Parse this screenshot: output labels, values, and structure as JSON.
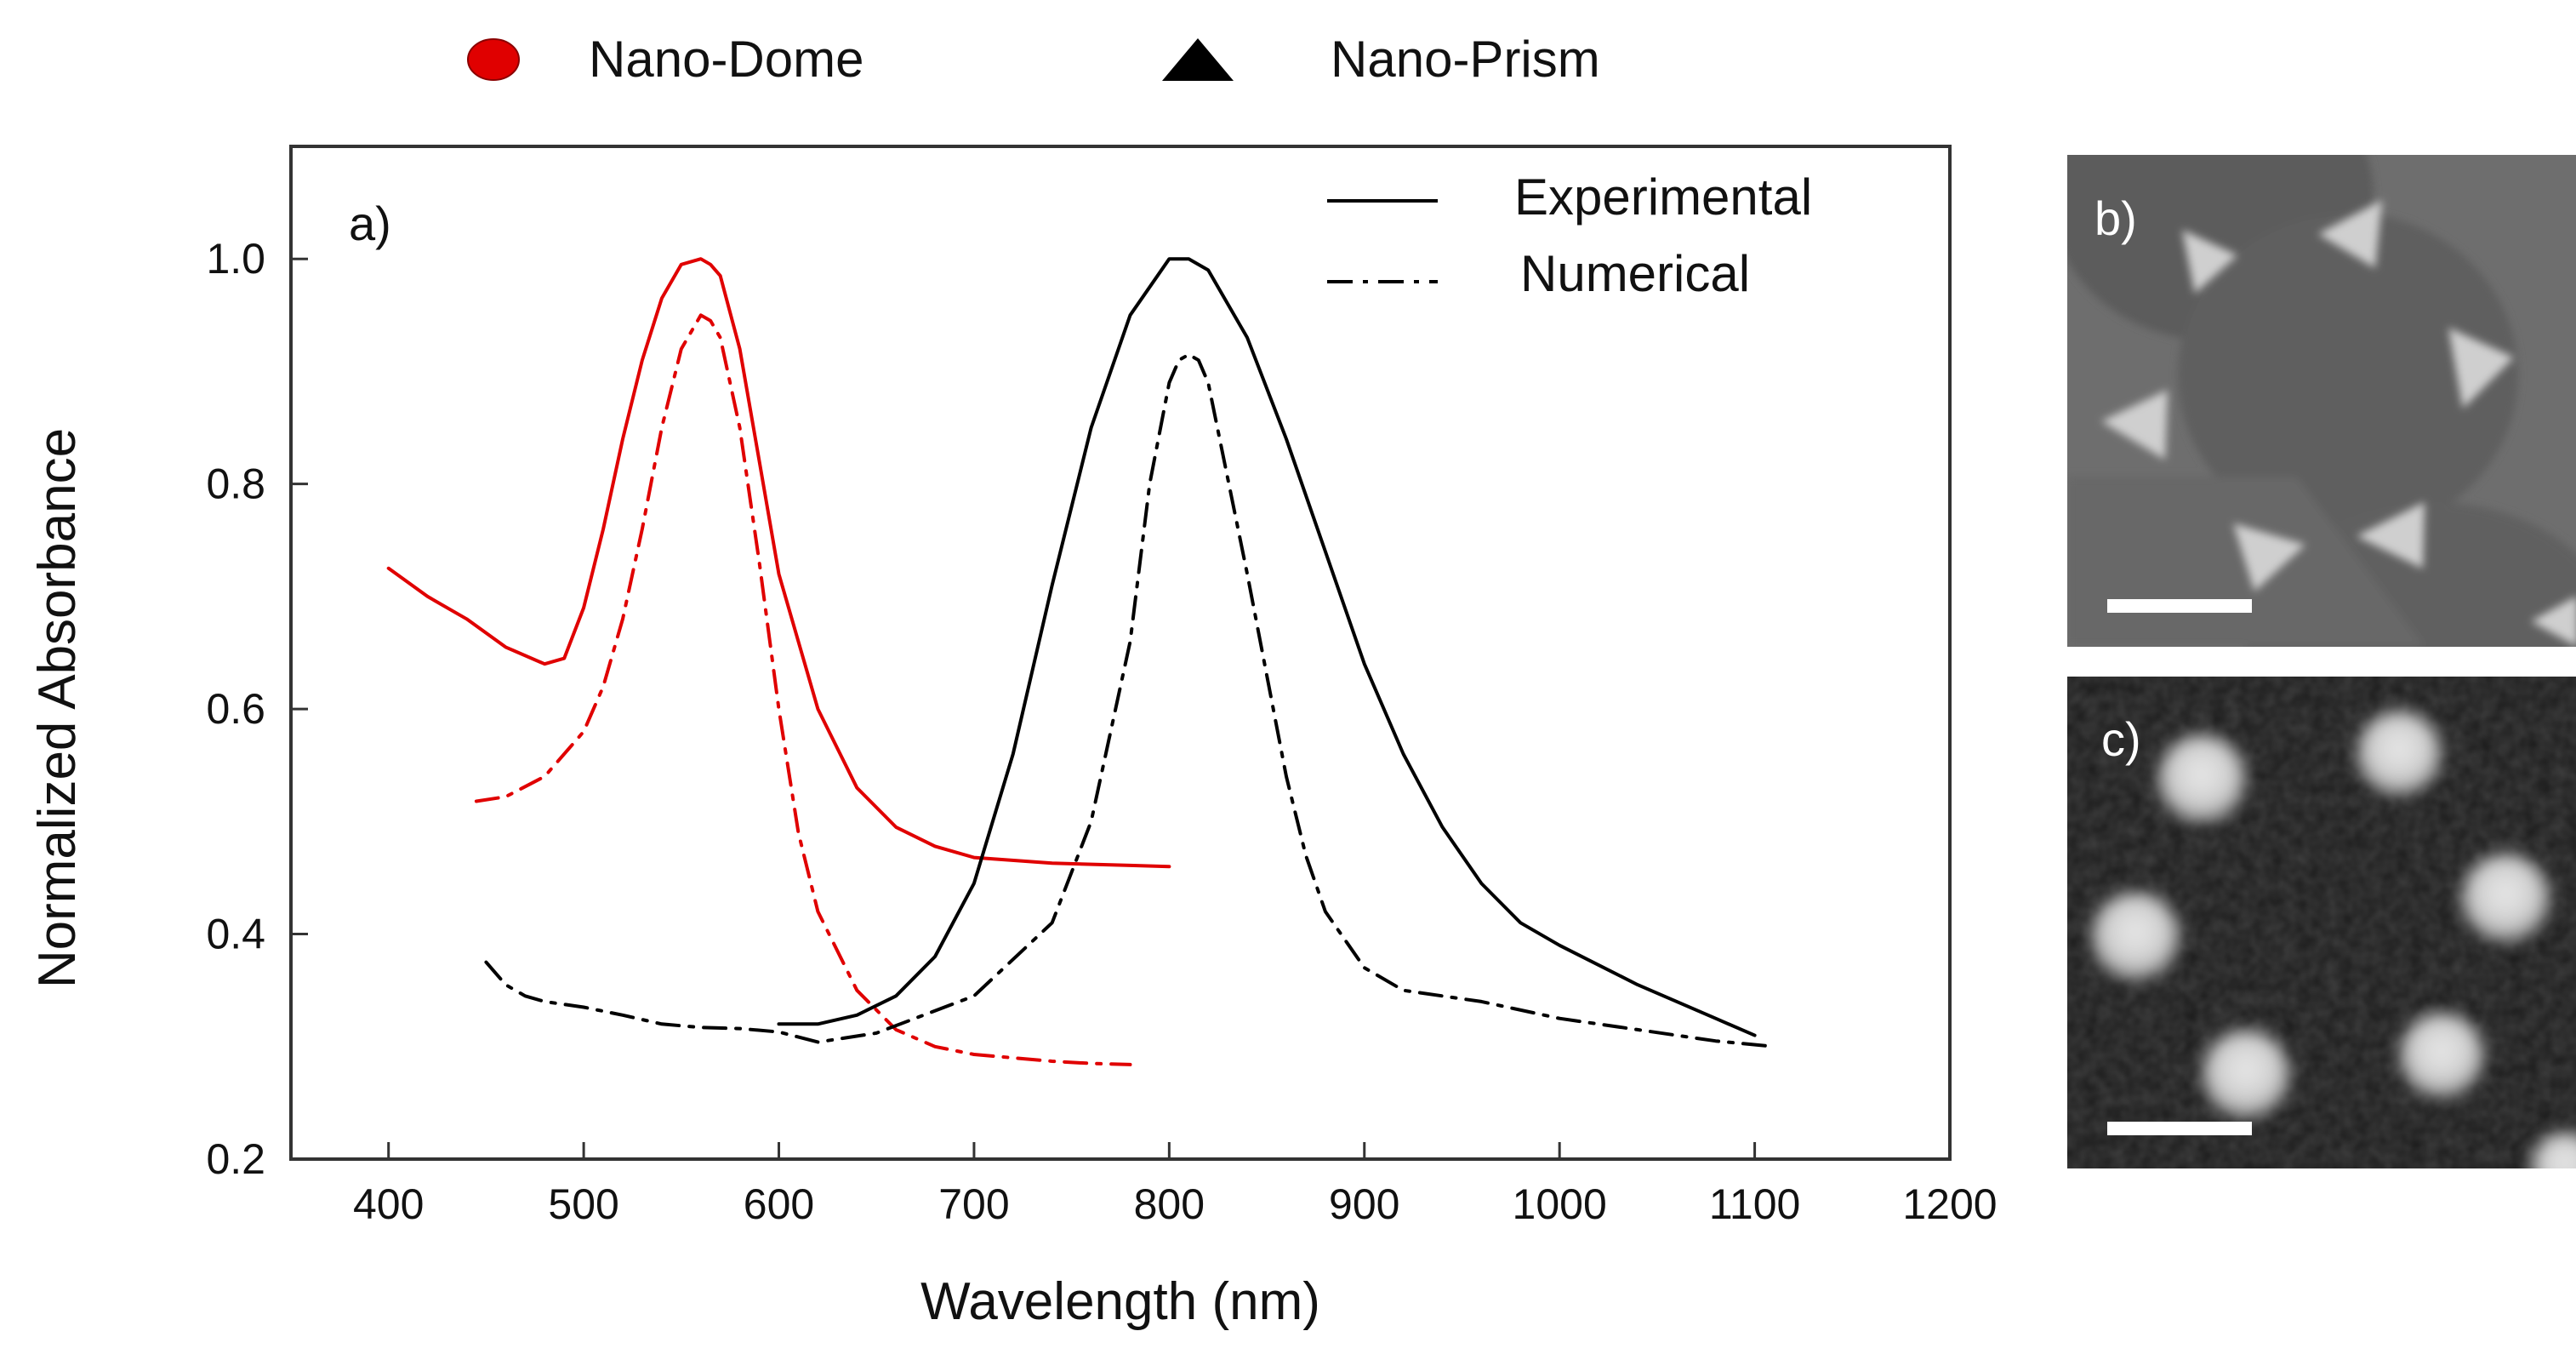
{
  "top_legend": [
    {
      "marker": "circle",
      "label": "Nano-Dome",
      "color": "#e00000"
    },
    {
      "marker": "triangle",
      "label": "Nano-Prism",
      "color": "#000000"
    }
  ],
  "chart_data": {
    "type": "line",
    "panel_label": "a)",
    "xlabel": "Wavelength (nm)",
    "ylabel": "Normalized Absorbance",
    "xlim": [
      350,
      1200
    ],
    "ylim": [
      0.2,
      1.1
    ],
    "xticks": [
      "400",
      "500",
      "600",
      "700",
      "800",
      "900",
      "1000",
      "1100",
      "1200"
    ],
    "yticks": [
      "0.2",
      "0.4",
      "0.6",
      "0.8",
      "1.0"
    ],
    "legend": [
      {
        "label": "Experimental",
        "style": "solid"
      },
      {
        "label": "Numerical",
        "style": "dash-dot"
      }
    ],
    "series": [
      {
        "name": "Nano-Dome Experimental",
        "color": "#e00000",
        "style": "solid",
        "x": [
          400,
          420,
          440,
          460,
          480,
          490,
          500,
          510,
          520,
          530,
          540,
          550,
          560,
          565,
          570,
          580,
          590,
          600,
          620,
          640,
          660,
          680,
          700,
          740,
          780,
          800
        ],
        "y": [
          0.725,
          0.7,
          0.68,
          0.655,
          0.64,
          0.645,
          0.69,
          0.76,
          0.84,
          0.91,
          0.965,
          0.995,
          1.0,
          0.995,
          0.985,
          0.92,
          0.82,
          0.72,
          0.6,
          0.53,
          0.495,
          0.478,
          0.468,
          0.463,
          0.461,
          0.46
        ]
      },
      {
        "name": "Nano-Dome Numerical",
        "color": "#e00000",
        "style": "dash-dot",
        "x": [
          445,
          460,
          480,
          500,
          510,
          520,
          530,
          540,
          550,
          560,
          565,
          570,
          580,
          590,
          600,
          610,
          620,
          640,
          660,
          680,
          700,
          720,
          740,
          760,
          780
        ],
        "y": [
          0.518,
          0.522,
          0.54,
          0.58,
          0.62,
          0.68,
          0.76,
          0.85,
          0.92,
          0.95,
          0.945,
          0.93,
          0.85,
          0.73,
          0.6,
          0.49,
          0.42,
          0.35,
          0.315,
          0.3,
          0.293,
          0.29,
          0.287,
          0.285,
          0.284
        ]
      },
      {
        "name": "Nano-Prism Experimental",
        "color": "#000000",
        "style": "solid",
        "x": [
          600,
          620,
          640,
          660,
          680,
          700,
          720,
          740,
          760,
          780,
          800,
          810,
          820,
          840,
          860,
          880,
          900,
          920,
          940,
          960,
          980,
          1000,
          1040,
          1080,
          1100
        ],
        "y": [
          0.32,
          0.32,
          0.328,
          0.345,
          0.38,
          0.445,
          0.56,
          0.71,
          0.85,
          0.95,
          1.0,
          1.0,
          0.99,
          0.93,
          0.84,
          0.74,
          0.64,
          0.56,
          0.495,
          0.445,
          0.41,
          0.39,
          0.355,
          0.325,
          0.31
        ]
      },
      {
        "name": "Nano-Prism Numerical",
        "color": "#000000",
        "style": "dash-dot",
        "x": [
          450,
          460,
          470,
          480,
          500,
          520,
          540,
          560,
          580,
          600,
          620,
          650,
          700,
          740,
          760,
          780,
          790,
          800,
          805,
          810,
          815,
          820,
          840,
          860,
          870,
          880,
          900,
          920,
          960,
          1000,
          1040,
          1080,
          1110
        ],
        "y": [
          0.375,
          0.355,
          0.345,
          0.34,
          0.335,
          0.328,
          0.32,
          0.317,
          0.316,
          0.313,
          0.304,
          0.312,
          0.345,
          0.41,
          0.5,
          0.66,
          0.8,
          0.89,
          0.91,
          0.915,
          0.91,
          0.89,
          0.72,
          0.54,
          0.47,
          0.42,
          0.37,
          0.35,
          0.34,
          0.325,
          0.315,
          0.305,
          0.3
        ]
      }
    ]
  },
  "panel_b_label": "b)",
  "panel_c_label": "c)"
}
